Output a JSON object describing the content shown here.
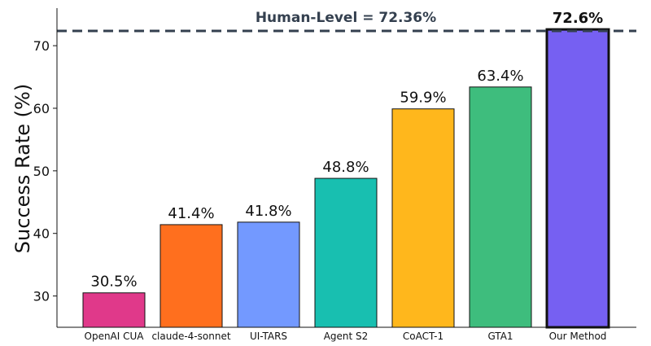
{
  "chart_data": {
    "type": "bar",
    "categories": [
      "OpenAI CUA",
      "claude-4-sonnet",
      "UI-TARS",
      "Agent S2",
      "CoACT-1",
      "GTA1",
      "Our Method"
    ],
    "values": [
      30.5,
      41.4,
      41.8,
      48.8,
      59.9,
      63.4,
      72.6
    ],
    "value_labels": [
      "30.5%",
      "41.4%",
      "41.8%",
      "48.8%",
      "59.9%",
      "63.4%",
      "72.6%"
    ],
    "colors": [
      "#e0398a",
      "#ff6f1e",
      "#7399ff",
      "#18bfb0",
      "#ffb71c",
      "#3ebd7d",
      "#7660f2"
    ],
    "highlight_index": 6,
    "ylabel": "Success Rate (%)",
    "ylim": [
      25,
      76
    ],
    "yticks": [
      30,
      40,
      50,
      60,
      70
    ],
    "grid": false,
    "reference_line": {
      "value": 72.36,
      "label": "Human-Level = 72.36%",
      "color": "#34404f"
    }
  }
}
